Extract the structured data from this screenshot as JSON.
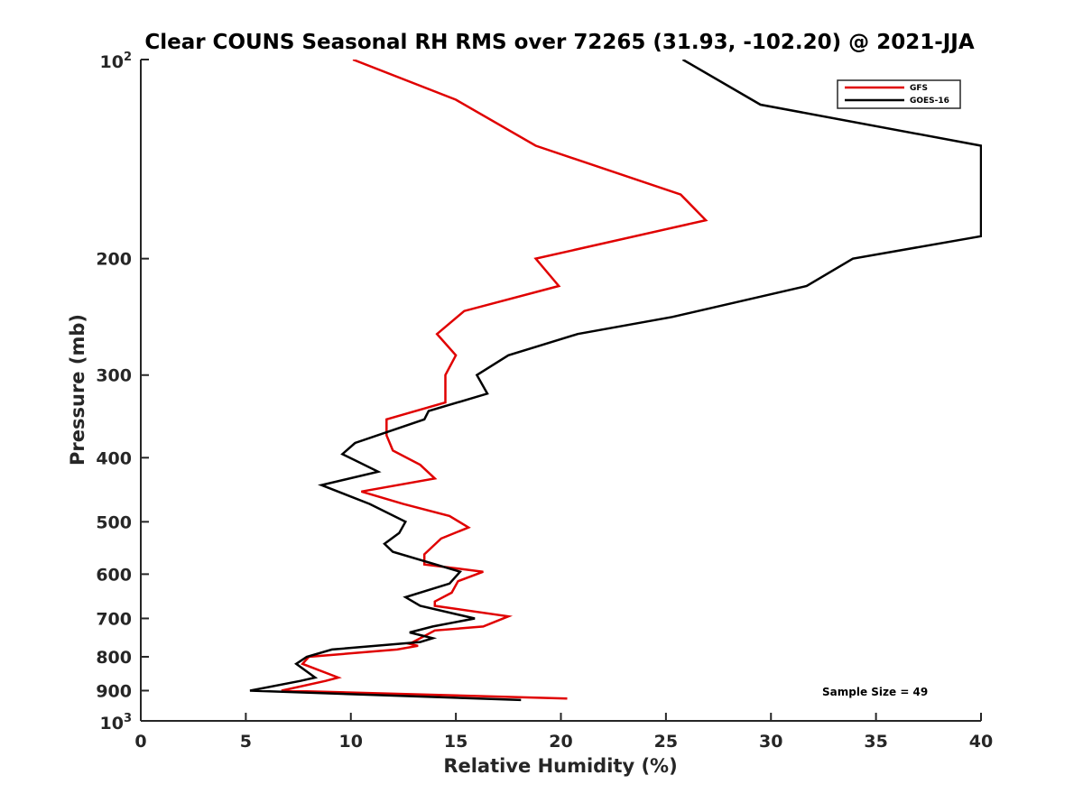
{
  "chart_data": {
    "type": "line",
    "title": "Clear COUNS Seasonal RH RMS over 72265 (31.93, -102.20) @ 2021-JJA",
    "xlabel": "Relative Humidity (%)",
    "ylabel": "Pressure (mb)",
    "xlim": [
      0,
      40
    ],
    "ylim": [
      100,
      1000
    ],
    "yscale": "log",
    "y_reversed": true,
    "x_ticks": [
      0,
      5,
      10,
      15,
      20,
      25,
      30,
      35,
      40
    ],
    "x_tick_labels": [
      "0",
      "5",
      "10",
      "15",
      "20",
      "25",
      "30",
      "35",
      "40"
    ],
    "y_ticks": [
      200,
      300,
      400,
      500,
      600,
      700,
      800,
      900
    ],
    "y_tick_labels": [
      "200",
      "300",
      "400",
      "500",
      "600",
      "700",
      "800",
      "900"
    ],
    "y_tick_top": {
      "base": "10",
      "exp": "2"
    },
    "y_tick_bottom": {
      "base": "10",
      "exp": "3"
    },
    "grid": false,
    "legend_position": "top-right",
    "annotation": "Sample Size = 49",
    "series": [
      {
        "name": "GFS",
        "color": "#e00000",
        "points": [
          [
            10.1,
            100
          ],
          [
            15.0,
            115
          ],
          [
            18.8,
            135
          ],
          [
            25.7,
            160
          ],
          [
            26.9,
            175
          ],
          [
            18.8,
            200
          ],
          [
            19.9,
            220
          ],
          [
            15.4,
            240
          ],
          [
            14.1,
            260
          ],
          [
            15.0,
            280
          ],
          [
            14.5,
            300
          ],
          [
            14.5,
            330
          ],
          [
            11.7,
            350
          ],
          [
            11.7,
            370
          ],
          [
            12.0,
            390
          ],
          [
            13.3,
            410
          ],
          [
            14.0,
            430
          ],
          [
            10.5,
            450
          ],
          [
            12.5,
            470
          ],
          [
            14.7,
            490
          ],
          [
            15.6,
            510
          ],
          [
            14.3,
            530
          ],
          [
            13.5,
            560
          ],
          [
            13.5,
            580
          ],
          [
            16.3,
            595
          ],
          [
            15.1,
            615
          ],
          [
            14.8,
            640
          ],
          [
            14.0,
            660
          ],
          [
            14.0,
            670
          ],
          [
            17.5,
            695
          ],
          [
            16.3,
            720
          ],
          [
            14.0,
            730
          ],
          [
            12.8,
            765
          ],
          [
            13.2,
            770
          ],
          [
            12.2,
            780
          ],
          [
            8.0,
            800
          ],
          [
            7.7,
            820
          ],
          [
            9.4,
            860
          ],
          [
            8.8,
            870
          ],
          [
            6.7,
            900
          ],
          [
            20.3,
            925
          ]
        ]
      },
      {
        "name": "GOES-16",
        "color": "#000000",
        "points": [
          [
            25.8,
            100
          ],
          [
            29.5,
            117
          ],
          [
            40.0,
            135
          ],
          [
            40.0,
            185
          ],
          [
            33.9,
            200
          ],
          [
            31.7,
            220
          ],
          [
            25.3,
            245
          ],
          [
            20.8,
            260
          ],
          [
            17.5,
            280
          ],
          [
            16.0,
            300
          ],
          [
            16.5,
            320
          ],
          [
            13.7,
            340
          ],
          [
            13.5,
            350
          ],
          [
            10.2,
            380
          ],
          [
            9.6,
            395
          ],
          [
            11.3,
            420
          ],
          [
            8.6,
            440
          ],
          [
            10.9,
            470
          ],
          [
            12.6,
            500
          ],
          [
            12.3,
            520
          ],
          [
            11.6,
            540
          ],
          [
            12.0,
            555
          ],
          [
            15.2,
            595
          ],
          [
            14.7,
            620
          ],
          [
            12.6,
            650
          ],
          [
            13.3,
            670
          ],
          [
            15.9,
            700
          ],
          [
            13.9,
            720
          ],
          [
            12.8,
            735
          ],
          [
            13.9,
            750
          ],
          [
            13.3,
            760
          ],
          [
            9.1,
            780
          ],
          [
            7.9,
            800
          ],
          [
            7.4,
            820
          ],
          [
            8.3,
            860
          ],
          [
            7.6,
            870
          ],
          [
            5.2,
            900
          ],
          [
            18.1,
            930
          ]
        ]
      }
    ]
  }
}
